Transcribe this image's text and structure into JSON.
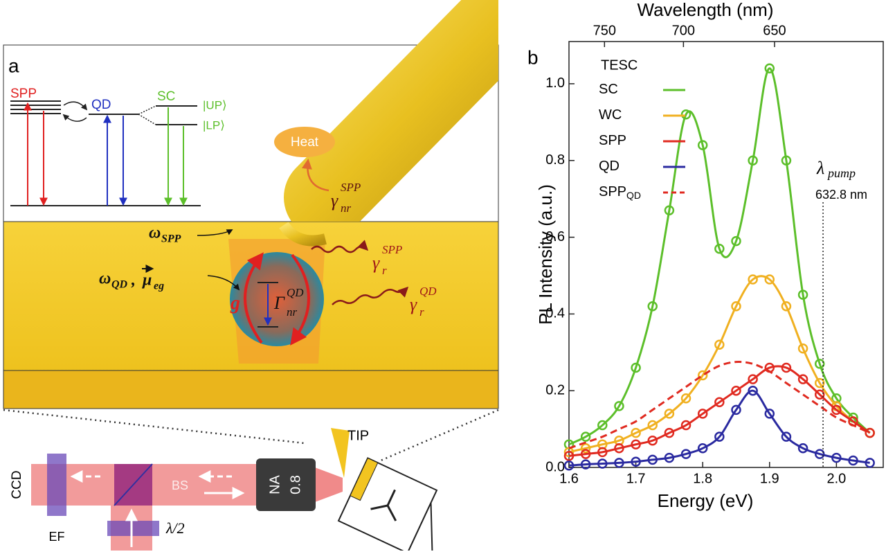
{
  "panel_a": {
    "panel_label": "a",
    "levels": {
      "spp": "SPP",
      "qd": "QD",
      "sc": "SC",
      "up": "|UP⟩",
      "lp": "|LP⟩"
    },
    "heat": "Heat",
    "gamma_nr_spp": {
      "base": "γ",
      "sub": "nr",
      "sup": "SPP"
    },
    "omega_spp": {
      "base": "ω",
      "sub": "SPP"
    },
    "gamma_r_spp": {
      "base": "γ",
      "sub": "r",
      "sup": "SPP"
    },
    "omega_qd_mu": {
      "base": "ω",
      "sub": "QD",
      "sep": ",",
      "base2": "μ",
      "sub2": "eg"
    },
    "coupling": "g",
    "gamma_nr_qd": {
      "base": "Γ",
      "sub": "nr",
      "sup": "QD"
    },
    "gamma_r_qd": {
      "base": "γ",
      "sub": "r",
      "sup": "QD"
    },
    "setup": {
      "tip": "TIP",
      "ccd": "CCD",
      "bs": "BS",
      "na": "NA",
      "na_value": "0.8",
      "ef": "EF",
      "waveplate": "λ/2"
    }
  },
  "chart_data": {
    "type": "line",
    "panel_label": "b",
    "xlabel": "Energy (eV)",
    "ylabel": "PL Intensity (a.u.)",
    "x2label": "Wavelength (nm)",
    "legend_title": "TESC",
    "xlim": [
      1.6,
      2.07
    ],
    "ylim": [
      0,
      1.11
    ],
    "xticks": [
      1.6,
      1.7,
      1.8,
      1.9,
      {
        "value": 2,
        "label": "2.0"
      }
    ],
    "yticks": [
      {
        "value": 0,
        "label": "0.0"
      },
      0.2,
      0.4,
      0.6,
      0.8,
      {
        "value": 1,
        "label": "1.0"
      }
    ],
    "x2ticks": [
      750,
      700,
      650
    ],
    "x": [
      1.6,
      1.625,
      1.65,
      1.675,
      1.7,
      1.725,
      1.75,
      1.775,
      1.8,
      1.825,
      1.85,
      1.875,
      1.9,
      1.925,
      1.95,
      1.975,
      2.0,
      2.025,
      2.05
    ],
    "series": [
      {
        "name": "SC",
        "color": "#5cbf2a",
        "markers": true,
        "values": [
          0.06,
          0.08,
          0.11,
          0.16,
          0.26,
          0.42,
          0.67,
          0.92,
          0.84,
          0.57,
          0.59,
          0.8,
          1.04,
          0.8,
          0.45,
          0.27,
          0.18,
          0.13,
          0.09
        ]
      },
      {
        "name": "WC",
        "color": "#f0b020",
        "markers": true,
        "values": [
          0.04,
          0.05,
          0.06,
          0.07,
          0.09,
          0.11,
          0.14,
          0.18,
          0.24,
          0.32,
          0.42,
          0.49,
          0.49,
          0.42,
          0.31,
          0.22,
          0.16,
          0.12,
          0.09
        ]
      },
      {
        "name": "SPP",
        "color": "#e02a20",
        "markers": true,
        "values": [
          0.03,
          0.035,
          0.04,
          0.05,
          0.06,
          0.07,
          0.09,
          0.11,
          0.14,
          0.17,
          0.2,
          0.23,
          0.26,
          0.26,
          0.23,
          0.19,
          0.15,
          0.12,
          0.09
        ]
      },
      {
        "name": "QD",
        "color": "#2a2aa0",
        "markers": true,
        "values": [
          0.005,
          0.008,
          0.01,
          0.012,
          0.015,
          0.02,
          0.025,
          0.035,
          0.05,
          0.08,
          0.15,
          0.2,
          0.14,
          0.08,
          0.05,
          0.035,
          0.025,
          0.018,
          0.012
        ]
      },
      {
        "name": "SPP",
        "subscript": "QD",
        "color": "#e02a20",
        "dashed": true,
        "markers": false,
        "values": [
          0.05,
          0.065,
          0.08,
          0.1,
          0.12,
          0.15,
          0.18,
          0.21,
          0.24,
          0.265,
          0.275,
          0.27,
          0.25,
          0.22,
          0.19,
          0.16,
          0.13,
          0.11,
          0.09
        ]
      }
    ],
    "annotation": {
      "symbol": "λ",
      "subscript": "pump",
      "text": "632.8 nm",
      "x": 1.98
    }
  }
}
